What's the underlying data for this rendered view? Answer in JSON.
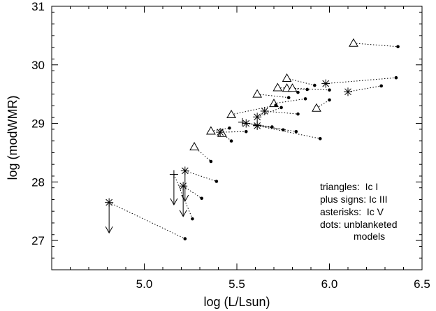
{
  "chart_data": {
    "type": "scatter",
    "xlabel": "log (L/Lsun)",
    "ylabel": "log (modWMR)",
    "xlim": [
      4.5,
      6.5
    ],
    "ylim": [
      26.5,
      31.0
    ],
    "xticks": [
      {
        "value": 5.0,
        "label": "5.0"
      },
      {
        "value": 5.5,
        "label": "5.5"
      },
      {
        "value": 6.0,
        "label": "6.0"
      },
      {
        "value": 6.5,
        "label": "6.5"
      }
    ],
    "yticks": [
      {
        "value": 27,
        "label": "27"
      },
      {
        "value": 28,
        "label": "28"
      },
      {
        "value": 29,
        "label": "29"
      },
      {
        "value": 30,
        "label": "30"
      },
      {
        "value": 31,
        "label": "31"
      }
    ],
    "legend": {
      "placement": "lower-right",
      "lines": [
        "triangles:  Ic I",
        "plus signs: Ic III",
        "asterisks:  Ic V",
        "dots: unblanketed",
        "models"
      ]
    },
    "pairs": [
      {
        "marker": "triangle",
        "x": 6.13,
        "y": 30.37,
        "dot_x": 6.37,
        "dot_y": 30.31
      },
      {
        "marker": "triangle",
        "x": 5.77,
        "y": 29.77,
        "dot_x": 5.92,
        "dot_y": 29.65
      },
      {
        "marker": "triangle",
        "x": 5.72,
        "y": 29.61,
        "dot_x": 5.88,
        "dot_y": 29.58
      },
      {
        "marker": "triangle",
        "x": 5.77,
        "y": 29.6,
        "dot_x": 5.83,
        "dot_y": 29.53
      },
      {
        "marker": "triangle",
        "x": 5.8,
        "y": 29.6,
        "dot_x": 6.0,
        "dot_y": 29.57
      },
      {
        "marker": "triangle",
        "x": 5.61,
        "y": 29.5,
        "dot_x": 5.78,
        "dot_y": 29.44
      },
      {
        "marker": "triangle",
        "x": 5.7,
        "y": 29.34,
        "dot_x": 5.87,
        "dot_y": 29.42
      },
      {
        "marker": "triangle",
        "x": 5.93,
        "y": 29.26,
        "dot_x": 6.0,
        "dot_y": 29.4
      },
      {
        "marker": "triangle",
        "x": 5.47,
        "y": 29.15,
        "dot_x": 5.71,
        "dot_y": 29.31
      },
      {
        "marker": "triangle",
        "x": 5.36,
        "y": 28.87,
        "dot_x": 5.46,
        "dot_y": 28.92
      },
      {
        "marker": "triangle",
        "x": 5.42,
        "y": 28.83,
        "dot_x": 5.47,
        "dot_y": 28.7
      },
      {
        "marker": "triangle",
        "x": 5.27,
        "y": 28.6,
        "dot_x": 5.36,
        "dot_y": 28.35
      },
      {
        "marker": "asterisk",
        "x": 5.98,
        "y": 29.68,
        "dot_x": 6.36,
        "dot_y": 29.78
      },
      {
        "marker": "asterisk",
        "x": 6.1,
        "y": 29.54,
        "dot_x": 6.28,
        "dot_y": 29.64
      },
      {
        "marker": "asterisk",
        "x": 5.65,
        "y": 29.21,
        "dot_x": 5.83,
        "dot_y": 29.16
      },
      {
        "marker": "asterisk",
        "x": 5.61,
        "y": 29.11,
        "dot_x": 5.74,
        "dot_y": 29.27
      },
      {
        "marker": "asterisk",
        "x": 5.55,
        "y": 29.0,
        "dot_x": 5.69,
        "dot_y": 28.94
      },
      {
        "marker": "asterisk",
        "x": 5.61,
        "y": 28.96,
        "dot_x": 5.95,
        "dot_y": 28.74
      },
      {
        "marker": "asterisk",
        "x": 5.41,
        "y": 28.85,
        "dot_x": 5.55,
        "dot_y": 28.86
      },
      {
        "marker": "asterisk",
        "x": 5.22,
        "y": 28.19,
        "dot_x": 5.39,
        "dot_y": 28.01
      },
      {
        "marker": "asterisk",
        "x": 5.21,
        "y": 27.93,
        "dot_x": 5.31,
        "dot_y": 27.72
      },
      {
        "marker": "asterisk",
        "x": 4.81,
        "y": 27.65,
        "dot_x": 5.22,
        "dot_y": 27.03
      },
      {
        "marker": "plus",
        "x": 5.53,
        "y": 29.02,
        "dot_x": 5.75,
        "dot_y": 28.89
      },
      {
        "marker": "plus",
        "x": 5.61,
        "y": 28.97,
        "dot_x": 5.82,
        "dot_y": 28.86
      },
      {
        "marker": "plus",
        "x": 5.16,
        "y": 28.13,
        "dot_x": 5.26,
        "dot_y": 27.37
      }
    ],
    "upper_limits": [
      {
        "x": 4.81,
        "from_y": 27.65,
        "to_y": 27.13
      },
      {
        "x": 5.16,
        "from_y": 28.13,
        "to_y": 27.61
      },
      {
        "x": 5.22,
        "from_y": 28.19,
        "to_y": 27.67
      },
      {
        "x": 5.21,
        "from_y": 27.93,
        "to_y": 27.41
      }
    ]
  }
}
